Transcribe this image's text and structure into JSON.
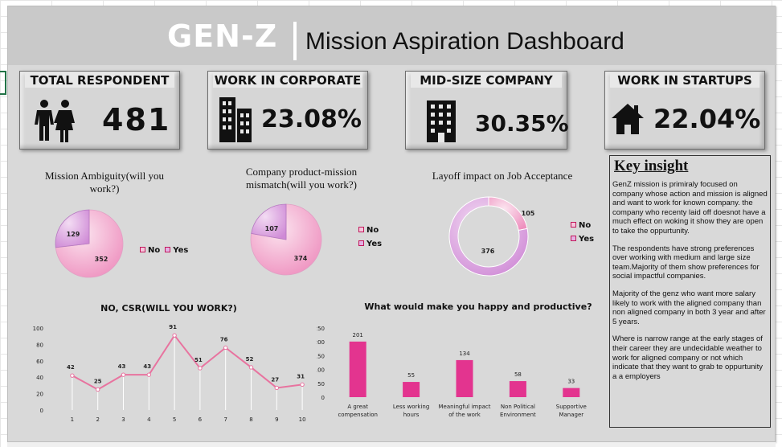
{
  "header": {
    "brand": "GEN-Z",
    "subtitle": "Mission Aspiration Dashboard"
  },
  "kpis": [
    {
      "label": "TOTAL RESPONDENT",
      "value": "481",
      "icon": "people-icon"
    },
    {
      "label": "WORK IN CORPORATE",
      "value": "23.08%",
      "icon": "office-buildings-icon"
    },
    {
      "label": "MID-SIZE COMPANY",
      "value": "30.35%",
      "icon": "building-icon"
    },
    {
      "label": "WORK IN STARTUPS",
      "value": "22.04%",
      "icon": "house-icon"
    }
  ],
  "colors": {
    "no": "#f4c6dc",
    "yes": "#e3b1e3",
    "accent": "#e3348f",
    "line": "#e8739f"
  },
  "chart_data": [
    {
      "type": "pie",
      "title": "Mission Ambiguity(will you work?)",
      "labels": [
        "No",
        "Yes"
      ],
      "values": [
        352,
        129
      ]
    },
    {
      "type": "pie",
      "title": "Company product-mission mismatch(will you work?)",
      "labels": [
        "No",
        "Yes"
      ],
      "values": [
        374,
        107
      ]
    },
    {
      "type": "doughnut",
      "title": "Layoff impact on Job Acceptance",
      "labels": [
        "No",
        "Yes"
      ],
      "values": [
        105,
        376
      ]
    },
    {
      "type": "line",
      "title": "NO, CSR(WILL YOU WORK?)",
      "x": [
        "1",
        "2",
        "3",
        "4",
        "5",
        "6",
        "7",
        "8",
        "9",
        "10"
      ],
      "values": [
        42,
        25,
        43,
        43,
        91,
        51,
        76,
        52,
        27,
        31
      ],
      "yticks": [
        "0",
        "20",
        "40",
        "60",
        "80",
        "100"
      ],
      "ylim": [
        0,
        100
      ]
    },
    {
      "type": "bar",
      "title": "What would make you happy and productive?",
      "categories": [
        [
          "A great",
          "compensation"
        ],
        [
          "Less working",
          "hours"
        ],
        [
          "Meaningful impact",
          "of the work"
        ],
        [
          "Non Political",
          "Environment"
        ],
        [
          "Supportive",
          "Manager"
        ]
      ],
      "values": [
        201,
        55,
        134,
        58,
        33
      ],
      "yticks": [
        "0",
        "50",
        "100",
        "150",
        "200",
        "250"
      ],
      "ylim": [
        0,
        250
      ]
    }
  ],
  "insight": {
    "title": "Key insight",
    "paragraphs": [
      "GenZ mission is primiraly focused on company whose action and mission is aligned and want to work for known company. the company who recenty laid off doesnot have a much effect on woking it show they are open to take the oppurtunity.",
      "The respondents have strong preferences over working with  medium and large size team.Majority of them show preferences for social impactful companies.",
      "Majority of the genz who want more salary likely to work with the aligned company than non aligned company in both 3 year and after 5 years.",
      "Where is narrow range at the early stages of their career they are undecidable weather to work for aligned company or not which indicate that they want to grab te oppurtunity a a employers"
    ]
  }
}
